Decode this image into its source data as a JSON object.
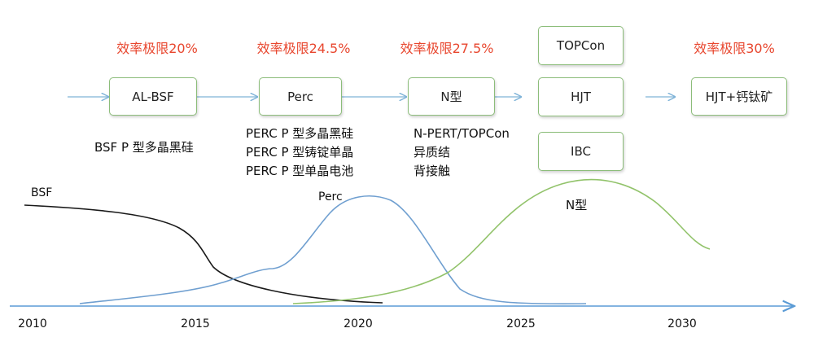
{
  "efficiency_limits": [
    {
      "text": "效率极限20%"
    },
    {
      "text": "效率极限24.5%"
    },
    {
      "text": "效率极限27.5%"
    },
    {
      "text": "效率极限30%"
    }
  ],
  "stages": [
    {
      "label": "AL-BSF"
    },
    {
      "label": "Perc"
    },
    {
      "label": "N型"
    },
    {
      "label": "TOPCon"
    },
    {
      "label": "HJT"
    },
    {
      "label": "IBC"
    },
    {
      "label": "HJT+钙钛矿"
    }
  ],
  "descriptions": {
    "bsf": [
      "BSF P 型多晶黑硅"
    ],
    "perc": [
      "PERC P 型多晶黑硅",
      "PERC P 型铸锭单晶",
      "PERC P 型单晶电池"
    ],
    "n_type": [
      "N-PERT/TOPCon",
      "异质结",
      "背接触"
    ]
  },
  "curve_labels": {
    "bsf": "BSF",
    "perc": "Perc",
    "n_type": "N型"
  },
  "timeline": {
    "years": [
      "2010",
      "2015",
      "2020",
      "2025",
      "2030"
    ]
  },
  "colors": {
    "efficiency_text": "#e8472f",
    "box_border": "#8cbd7a",
    "arrow": "#7fb3d8",
    "axis": "#5b9bd5",
    "bsf_curve": "#1a1a1a",
    "perc_curve": "#6f9fd0",
    "n_curve": "#92c36b"
  }
}
